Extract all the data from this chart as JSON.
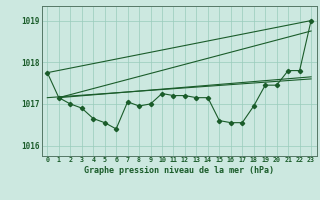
{
  "background_color": "#cce8e0",
  "grid_color": "#99ccbb",
  "line_color": "#1a5c2a",
  "title": "Graphe pression niveau de la mer (hPa)",
  "xlim": [
    -0.5,
    23.5
  ],
  "ylim": [
    1015.75,
    1019.35
  ],
  "yticks": [
    1016,
    1017,
    1018,
    1019
  ],
  "xtick_labels": [
    "0",
    "1",
    "2",
    "3",
    "4",
    "5",
    "6",
    "7",
    "8",
    "9",
    "10",
    "11",
    "12",
    "13",
    "14",
    "15",
    "16",
    "17",
    "18",
    "19",
    "20",
    "21",
    "22",
    "23"
  ],
  "series_main_x": [
    0,
    1,
    2,
    3,
    4,
    5,
    6,
    7,
    8,
    9,
    10,
    11,
    12,
    13,
    14,
    15,
    16,
    17,
    18,
    19,
    20,
    21,
    22,
    23
  ],
  "series_main_y": [
    1017.75,
    1017.15,
    1017.0,
    1016.9,
    1016.65,
    1016.55,
    1016.4,
    1017.05,
    1016.95,
    1017.0,
    1017.25,
    1017.2,
    1017.2,
    1017.15,
    1017.15,
    1016.6,
    1016.55,
    1016.55,
    1016.95,
    1017.45,
    1017.45,
    1017.8,
    1017.8,
    1019.0
  ],
  "trend1_x": [
    0,
    23
  ],
  "trend1_y": [
    1017.75,
    1019.0
  ],
  "trend2_x": [
    1,
    23
  ],
  "trend2_y": [
    1017.15,
    1018.75
  ],
  "trend3_x": [
    1,
    23
  ],
  "trend3_y": [
    1017.15,
    1017.65
  ],
  "trend4_x": [
    0,
    23
  ],
  "trend4_y": [
    1017.15,
    1017.6
  ]
}
